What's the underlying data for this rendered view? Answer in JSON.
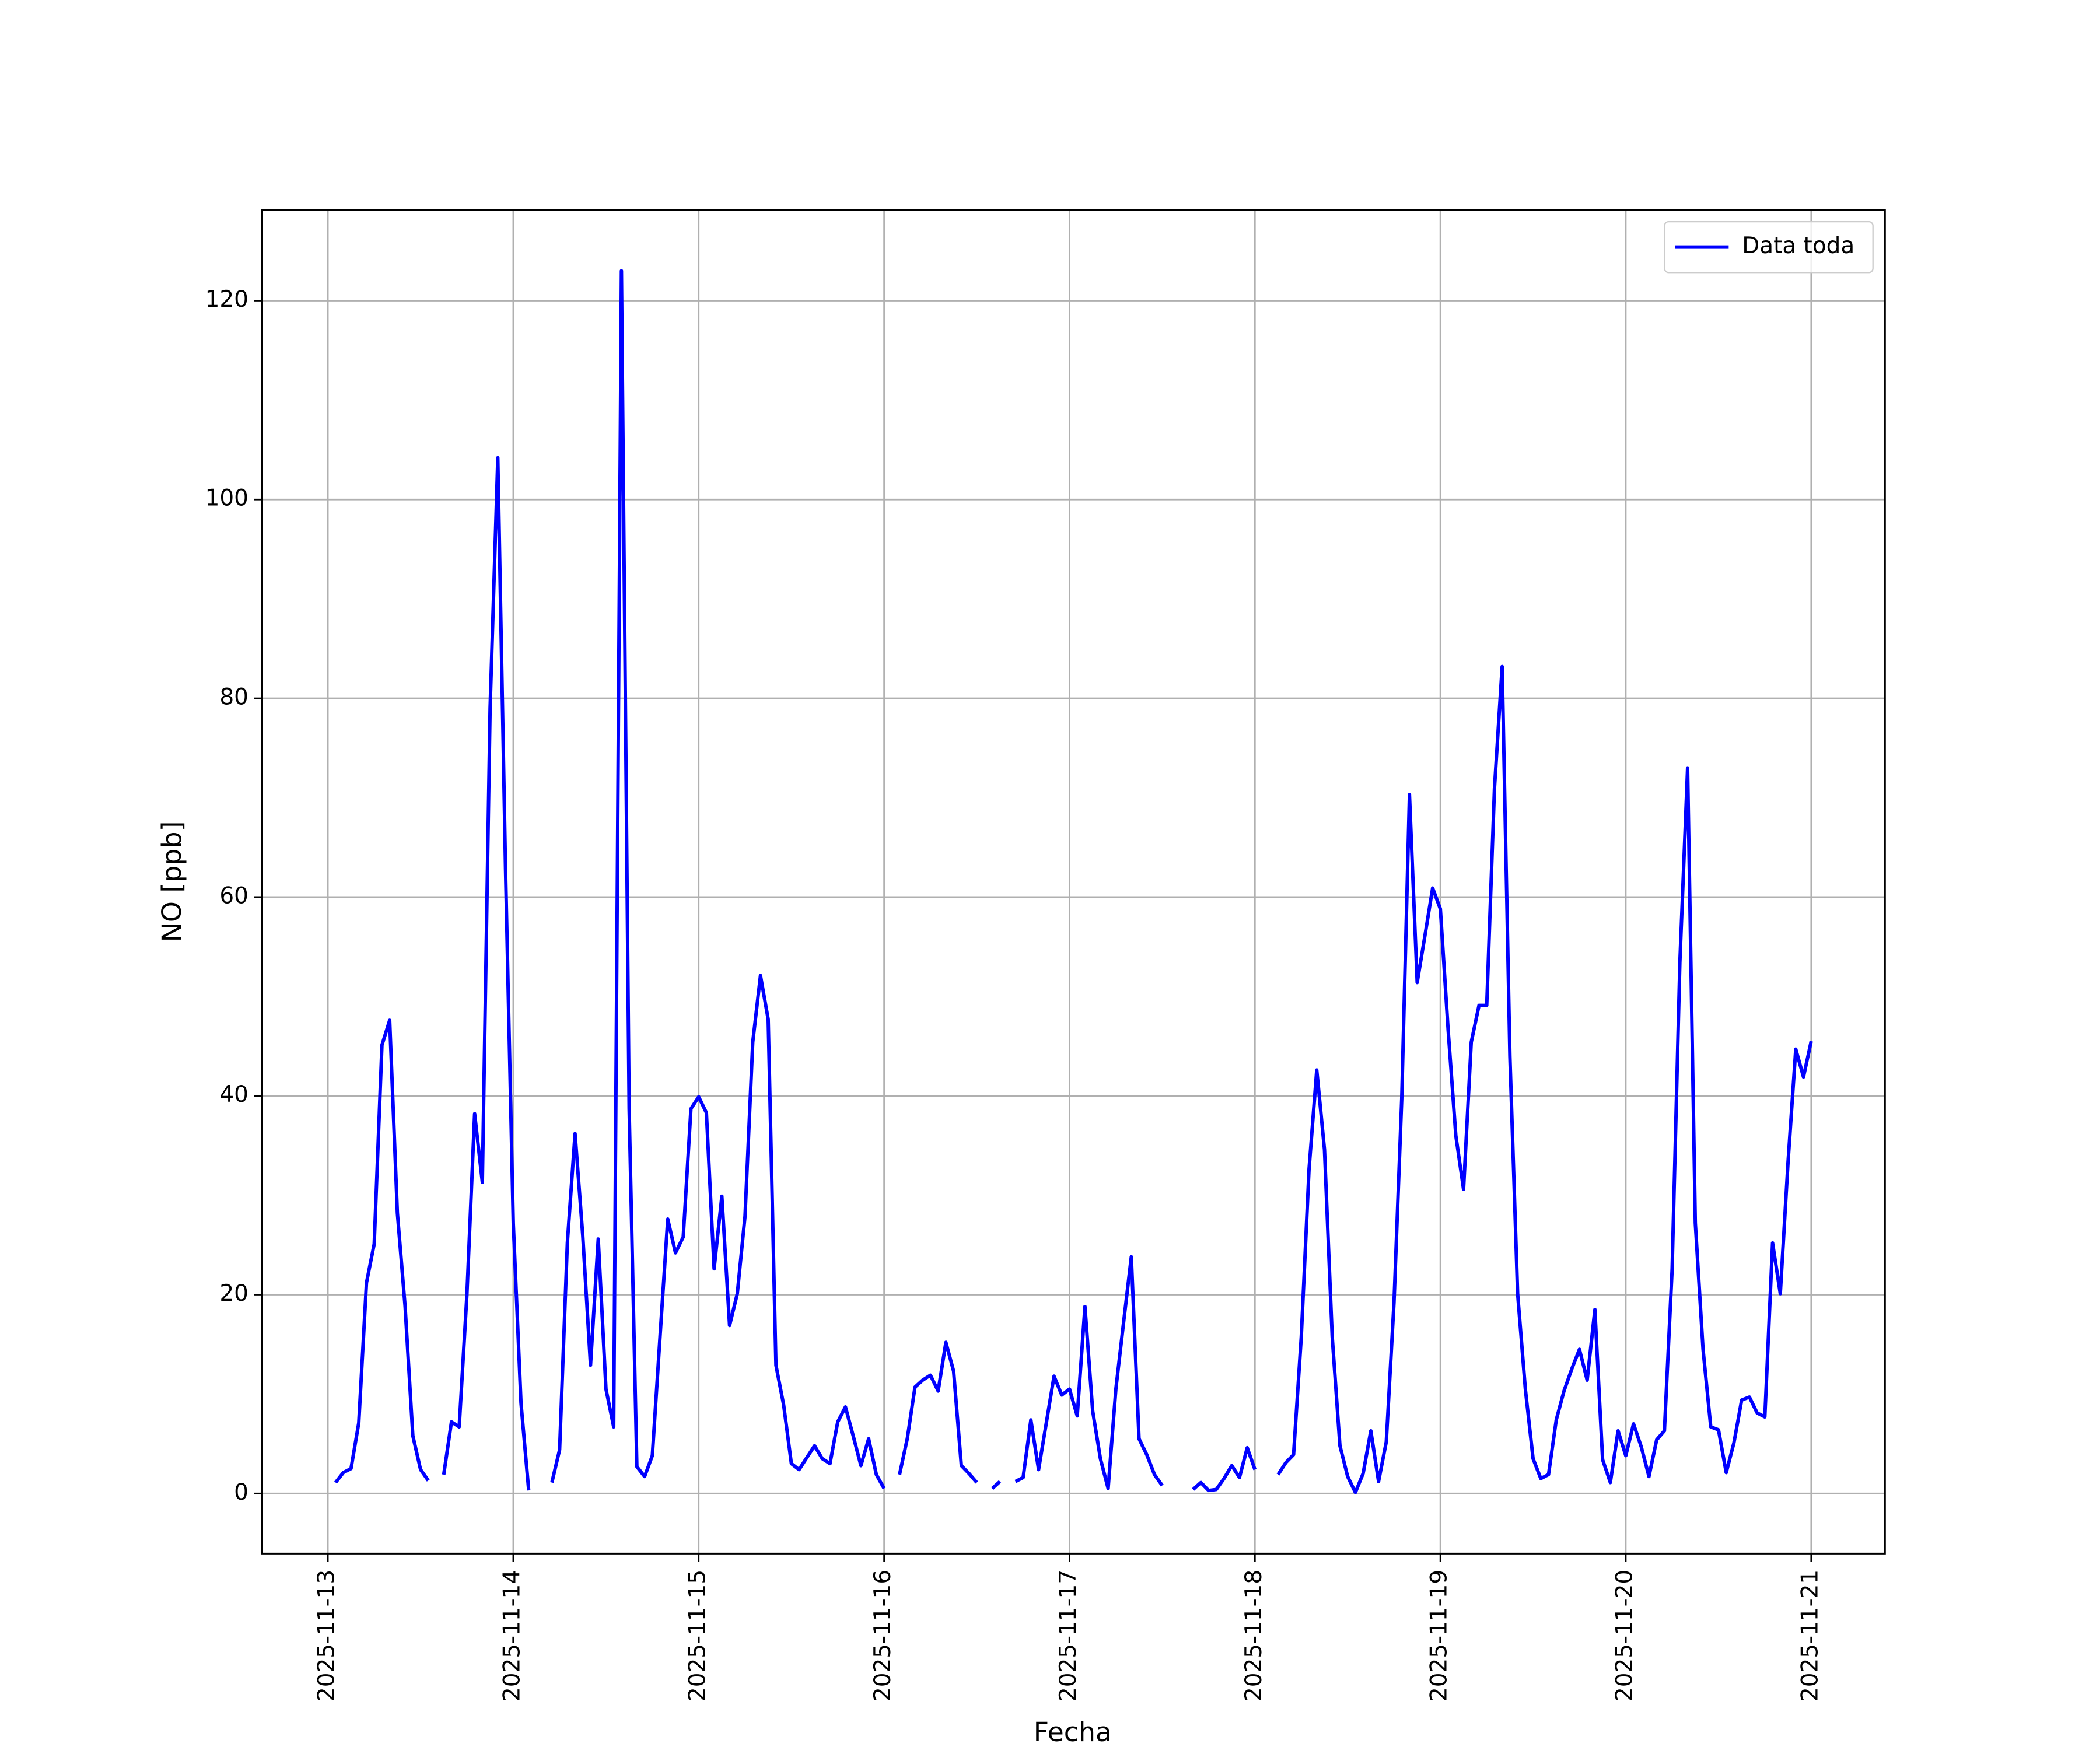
{
  "chart_data": {
    "type": "line",
    "xlabel": "Fecha",
    "ylabel": "NO [ppb]",
    "legend": "upper right",
    "grid": true,
    "xlim": [
      "2025-11-12 15:27",
      "2025-11-21 09:33"
    ],
    "xticks": [
      "2025-11-13",
      "2025-11-14",
      "2025-11-15",
      "2025-11-16",
      "2025-11-17",
      "2025-11-18",
      "2025-11-19",
      "2025-11-20",
      "2025-11-21"
    ],
    "ylim": [
      -6.05,
      129.15
    ],
    "yticks": [
      0,
      20,
      40,
      60,
      80,
      100,
      120
    ],
    "x": [
      "2025-11-13 01:00",
      "2025-11-13 02:00",
      "2025-11-13 03:00",
      "2025-11-13 04:00",
      "2025-11-13 05:00",
      "2025-11-13 06:00",
      "2025-11-13 07:00",
      "2025-11-13 08:00",
      "2025-11-13 09:00",
      "2025-11-13 10:00",
      "2025-11-13 11:00",
      "2025-11-13 12:00",
      "2025-11-13 13:00",
      "2025-11-13 14:00",
      "2025-11-13 15:00",
      "2025-11-13 16:00",
      "2025-11-13 17:00",
      "2025-11-13 18:00",
      "2025-11-13 19:00",
      "2025-11-13 20:00",
      "2025-11-13 21:00",
      "2025-11-13 22:00",
      "2025-11-13 23:00",
      "2025-11-14 00:00",
      "2025-11-14 01:00",
      "2025-11-14 02:00",
      "2025-11-14 03:00",
      "2025-11-14 04:00",
      "2025-11-14 05:00",
      "2025-11-14 06:00",
      "2025-11-14 07:00",
      "2025-11-14 08:00",
      "2025-11-14 09:00",
      "2025-11-14 10:00",
      "2025-11-14 11:00",
      "2025-11-14 12:00",
      "2025-11-14 13:00",
      "2025-11-14 14:00",
      "2025-11-14 15:00",
      "2025-11-14 16:00",
      "2025-11-14 17:00",
      "2025-11-14 18:00",
      "2025-11-14 19:00",
      "2025-11-14 20:00",
      "2025-11-14 21:00",
      "2025-11-14 22:00",
      "2025-11-14 23:00",
      "2025-11-15 00:00",
      "2025-11-15 01:00",
      "2025-11-15 02:00",
      "2025-11-15 03:00",
      "2025-11-15 04:00",
      "2025-11-15 05:00",
      "2025-11-15 06:00",
      "2025-11-15 07:00",
      "2025-11-15 08:00",
      "2025-11-15 09:00",
      "2025-11-15 10:00",
      "2025-11-15 11:00",
      "2025-11-15 12:00",
      "2025-11-15 13:00",
      "2025-11-15 14:00",
      "2025-11-15 15:00",
      "2025-11-15 16:00",
      "2025-11-15 17:00",
      "2025-11-15 18:00",
      "2025-11-15 19:00",
      "2025-11-15 20:00",
      "2025-11-15 21:00",
      "2025-11-15 22:00",
      "2025-11-15 23:00",
      "2025-11-16 00:00",
      "2025-11-16 01:00",
      "2025-11-16 02:00",
      "2025-11-16 03:00",
      "2025-11-16 04:00",
      "2025-11-16 05:00",
      "2025-11-16 06:00",
      "2025-11-16 07:00",
      "2025-11-16 08:00",
      "2025-11-16 09:00",
      "2025-11-16 10:00",
      "2025-11-16 11:00",
      "2025-11-16 12:00",
      "2025-11-16 13:00",
      "2025-11-16 14:00",
      "2025-11-16 15:00",
      "2025-11-16 16:00",
      "2025-11-16 17:00",
      "2025-11-16 18:00",
      "2025-11-16 19:00",
      "2025-11-16 20:00",
      "2025-11-16 21:00",
      "2025-11-16 22:00",
      "2025-11-16 23:00",
      "2025-11-17 00:00",
      "2025-11-17 01:00",
      "2025-11-17 02:00",
      "2025-11-17 03:00",
      "2025-11-17 04:00",
      "2025-11-17 05:00",
      "2025-11-17 06:00",
      "2025-11-17 07:00",
      "2025-11-17 08:00",
      "2025-11-17 09:00",
      "2025-11-17 10:00",
      "2025-11-17 11:00",
      "2025-11-17 12:00",
      "2025-11-17 13:00",
      "2025-11-17 14:00",
      "2025-11-17 15:00",
      "2025-11-17 16:00",
      "2025-11-17 17:00",
      "2025-11-17 18:00",
      "2025-11-17 19:00",
      "2025-11-17 20:00",
      "2025-11-17 21:00",
      "2025-11-17 22:00",
      "2025-11-17 23:00",
      "2025-11-18 00:00",
      "2025-11-18 01:00",
      "2025-11-18 02:00",
      "2025-11-18 03:00",
      "2025-11-18 04:00",
      "2025-11-18 05:00",
      "2025-11-18 06:00",
      "2025-11-18 07:00",
      "2025-11-18 08:00",
      "2025-11-18 09:00",
      "2025-11-18 10:00",
      "2025-11-18 11:00",
      "2025-11-18 12:00",
      "2025-11-18 13:00",
      "2025-11-18 14:00",
      "2025-11-18 15:00",
      "2025-11-18 16:00",
      "2025-11-18 17:00",
      "2025-11-18 18:00",
      "2025-11-18 19:00",
      "2025-11-18 20:00",
      "2025-11-18 21:00",
      "2025-11-18 22:00",
      "2025-11-18 23:00",
      "2025-11-19 00:00",
      "2025-11-19 01:00",
      "2025-11-19 02:00",
      "2025-11-19 03:00",
      "2025-11-19 04:00",
      "2025-11-19 05:00",
      "2025-11-19 06:00",
      "2025-11-19 07:00",
      "2025-11-19 08:00",
      "2025-11-19 09:00",
      "2025-11-19 10:00",
      "2025-11-19 11:00",
      "2025-11-19 12:00",
      "2025-11-19 13:00",
      "2025-11-19 14:00",
      "2025-11-19 15:00",
      "2025-11-19 16:00",
      "2025-11-19 17:00",
      "2025-11-19 18:00",
      "2025-11-19 19:00",
      "2025-11-19 20:00",
      "2025-11-19 21:00",
      "2025-11-19 22:00",
      "2025-11-19 23:00",
      "2025-11-20 00:00",
      "2025-11-20 01:00",
      "2025-11-20 02:00",
      "2025-11-20 03:00",
      "2025-11-20 04:00",
      "2025-11-20 05:00",
      "2025-11-20 06:00",
      "2025-11-20 07:00",
      "2025-11-20 08:00",
      "2025-11-20 09:00",
      "2025-11-20 10:00",
      "2025-11-20 11:00",
      "2025-11-20 12:00",
      "2025-11-20 13:00",
      "2025-11-20 14:00",
      "2025-11-20 15:00",
      "2025-11-20 16:00",
      "2025-11-20 17:00",
      "2025-11-20 18:00",
      "2025-11-20 19:00",
      "2025-11-20 20:00",
      "2025-11-20 21:00",
      "2025-11-20 22:00",
      "2025-11-20 23:00",
      "2025-11-21 00:00"
    ],
    "series": [
      {
        "name": "Data toda",
        "color": "#0000ff",
        "values": [
          1.1,
          2.1,
          2.5,
          7.1,
          21.2,
          25.1,
          45.1,
          47.6,
          28.2,
          18.8,
          5.8,
          2.4,
          1.3,
          null,
          1.9,
          7.2,
          6.7,
          20,
          38.2,
          31.3,
          79,
          104.2,
          62.8,
          27.2,
          9.1,
          0.3,
          null,
          null,
          1.1,
          4.4,
          25.2,
          36.2,
          25.9,
          12.9,
          25.6,
          10.5,
          6.7,
          123,
          38.7,
          2.7,
          1.7,
          3.8,
          15.8,
          27.6,
          24.2,
          25.8,
          38.7,
          39.9,
          38.3,
          22.6,
          29.9,
          16.9,
          20.1,
          27.9,
          45.4,
          52.1,
          47.7,
          12.9,
          8.9,
          3,
          2.4,
          3.6,
          4.8,
          3.5,
          3,
          7.2,
          8.7,
          5.8,
          2.8,
          5.5,
          1.9,
          0.5,
          null,
          1.9,
          5.5,
          10.7,
          11.4,
          11.9,
          10.3,
          15.2,
          12.3,
          2.8,
          2,
          1.1,
          null,
          0.5,
          1.2,
          null,
          1.2,
          1.6,
          7.4,
          2.4,
          7.1,
          11.8,
          9.9,
          10.5,
          7.8,
          18.8,
          8.3,
          3.5,
          0.5,
          10.5,
          17.2,
          23.8,
          5.5,
          3.9,
          1.9,
          0.8,
          null,
          null,
          null,
          0.4,
          1.1,
          0.3,
          0.4,
          1.5,
          2.8,
          1.6,
          4.6,
          2.4,
          null,
          null,
          1.9,
          3.1,
          3.9,
          15.8,
          32.6,
          42.6,
          34.6,
          15.8,
          4.8,
          1.7,
          0.1,
          2,
          6.3,
          1.2,
          5.2,
          19.2,
          39.7,
          70.3,
          51.4,
          56.1,
          60.9,
          58.8,
          46.7,
          36,
          30.6,
          45.4,
          49.1,
          49.1,
          70.9,
          83.2,
          44,
          20.1,
          10.5,
          3.5,
          1.5,
          1.9,
          7.4,
          10.3,
          12.5,
          14.5,
          11.4,
          18.5,
          3.4,
          1.1,
          6.3,
          3.8,
          7,
          4.7,
          1.7,
          5.4,
          6.3,
          22.6,
          53.4,
          73,
          27.2,
          14.5,
          6.7,
          6.4,
          2.1,
          5.1,
          9.4,
          9.7,
          8.1,
          7.7,
          25.2,
          20.1,
          33.3,
          44.7,
          41.9,
          45.5
        ]
      }
    ]
  }
}
